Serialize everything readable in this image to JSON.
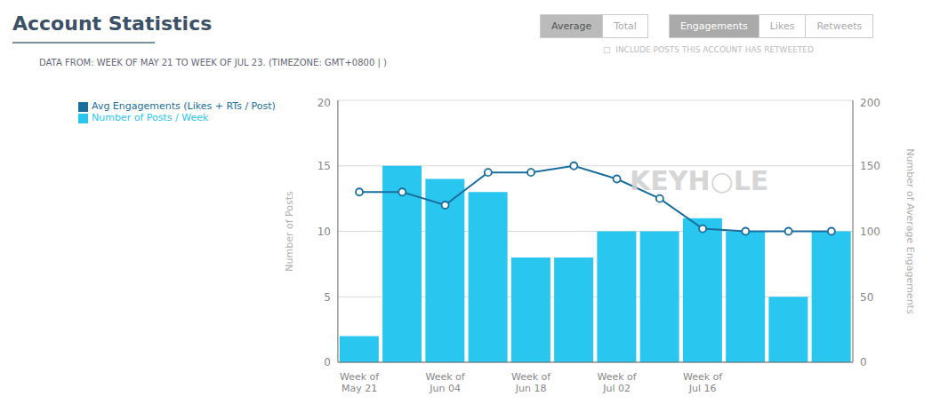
{
  "chart_data": {
    "type": "bar",
    "title": "Account Statistics",
    "subtitle": "DATA FROM: WEEK OF MAY 21 TO WEEK OF JUL 23. (TIMEZONE: GMT+0800 | )",
    "annotations": [
      "Average",
      "Total",
      "Engagements",
      "Likes",
      "Retweets",
      "□  INCLUDE POSTS THIS ACCOUNT HAS RETWEETED",
      "KEYH○LE"
    ],
    "categories": [
      "Week of\nMay 21",
      null,
      "Week of\nJun 04",
      null,
      "Week of\nJun 18",
      null,
      "Week of\nJul 02",
      null,
      "Week of\nJul 16",
      null,
      null,
      null
    ],
    "series": [
      {
        "name": "Number of Posts / Week",
        "type": "bar",
        "color": "#29C6F0",
        "values": [
          2,
          15,
          14,
          13,
          8,
          8,
          10,
          10,
          11,
          10,
          5,
          10
        ]
      },
      {
        "name": "Avg Engagements (Likes + RTs / Post)",
        "type": "line",
        "axis": "y2",
        "color": "#1a6e9e",
        "marker": "circle",
        "values": [
          130,
          130,
          120,
          145,
          145,
          150,
          140,
          125,
          102,
          100,
          100,
          100
        ]
      }
    ],
    "ylabel": "Number of Posts",
    "y2label": "Number of Average Engagements",
    "ylim": [
      0,
      20
    ],
    "yticks": [
      0,
      5,
      10,
      15,
      20
    ],
    "y2lim": [
      0,
      200
    ],
    "y2ticks": [
      0,
      50,
      100,
      150,
      200
    ],
    "grid": true,
    "legend": "upper left"
  }
}
